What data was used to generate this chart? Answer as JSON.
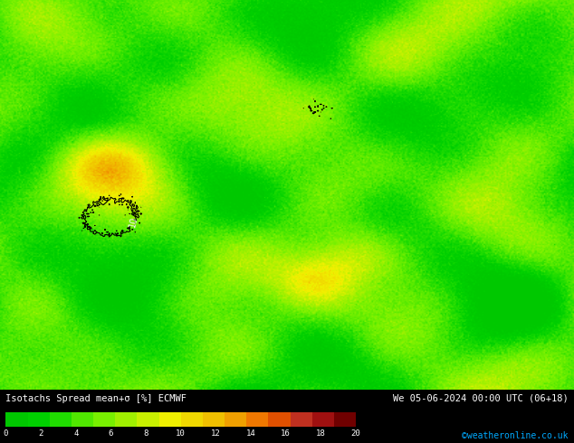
{
  "title_left": "Isotachs Spread mean+σ [%] ECMWF",
  "title_right": "We 05-06-2024 00:00 UTC (06+18)",
  "copyright": "©weatheronline.co.uk",
  "colorbar_ticks": [
    0,
    2,
    4,
    6,
    8,
    10,
    12,
    14,
    16,
    18,
    20
  ],
  "colorbar_colors": [
    "#00c800",
    "#14d400",
    "#28e000",
    "#50f000",
    "#78f000",
    "#a0f000",
    "#c8f000",
    "#f0f000",
    "#f0c800",
    "#f0a000",
    "#f07800",
    "#f05000",
    "#d03000",
    "#b01010",
    "#800000",
    "#500000",
    "#300000"
  ],
  "background_color": "#000000",
  "map_background": "#48c848",
  "fig_width": 6.34,
  "fig_height": 4.9,
  "dpi": 100
}
